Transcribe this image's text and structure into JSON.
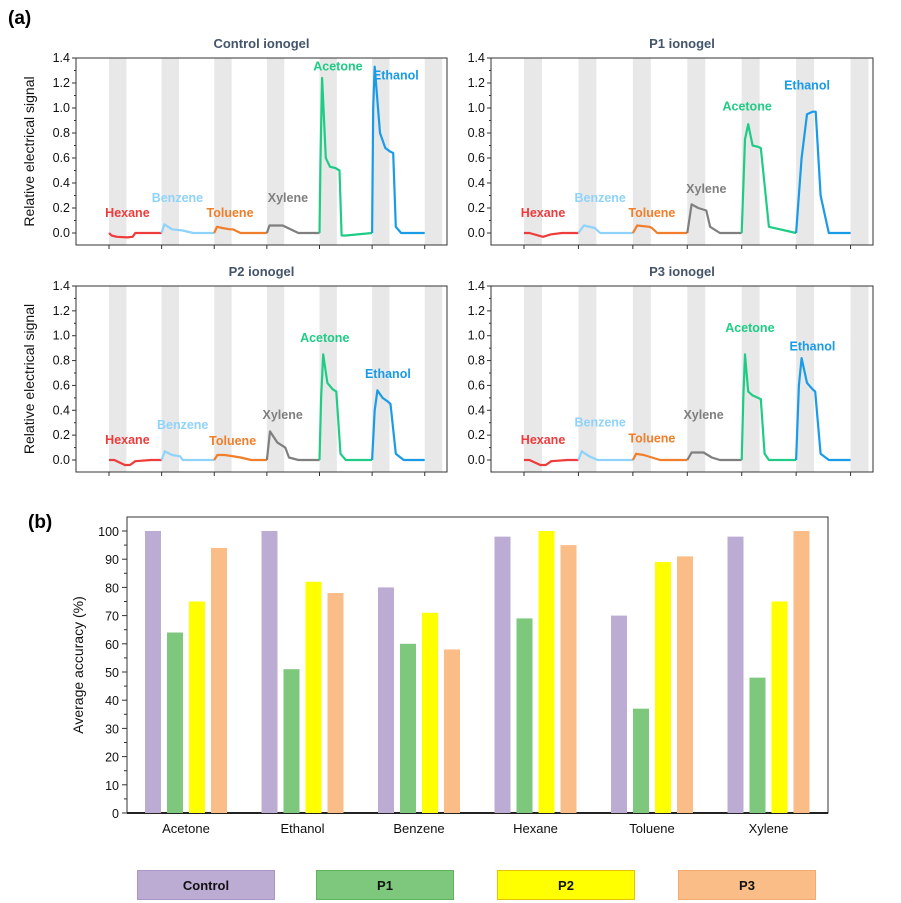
{
  "panel_labels": {
    "a": "(a)",
    "b": "(b)"
  },
  "colors": {
    "Hexane": "#ee3b3b",
    "Benzene": "#8fd3fb",
    "Toluene": "#f07e2a",
    "Xylene": "#7f7f7f",
    "Acetone": "#1fcc85",
    "Ethanol": "#1a9be8",
    "band": "#e8e8e8",
    "Control": "#bcabd3",
    "P1": "#7ec87e",
    "P2": "#ffff00",
    "P3": "#fbbd88"
  },
  "chart_data": [
    {
      "type": "line",
      "title": "Control ionogel",
      "xlabel": "",
      "ylabel": "Relative electrical signal",
      "ylim": [
        -0.1,
        1.4
      ],
      "yticks": [
        "0.0",
        "0.2",
        "0.4",
        "0.6",
        "0.8",
        "1.0",
        "1.2",
        "1.4"
      ],
      "grid": false,
      "series": [
        {
          "name": "Hexane",
          "x": [
            0,
            0.05,
            0.15,
            0.35,
            0.45,
            0.5,
            0.9,
            1.0
          ],
          "y": [
            0,
            -0.02,
            -0.03,
            -0.035,
            -0.03,
            0.0,
            0.0,
            0.0
          ]
        },
        {
          "name": "Benzene",
          "x": [
            1.0,
            1.05,
            1.2,
            1.4,
            1.6,
            2.0
          ],
          "y": [
            0.0,
            0.07,
            0.03,
            0.02,
            0.0,
            0.0
          ]
        },
        {
          "name": "Toluene",
          "x": [
            2.0,
            2.05,
            2.15,
            2.3,
            2.35,
            2.5,
            3.0
          ],
          "y": [
            0.0,
            0.05,
            0.04,
            0.03,
            0.03,
            0.0,
            0.0
          ]
        },
        {
          "name": "Xylene",
          "x": [
            3.0,
            3.05,
            3.3,
            3.45,
            3.6,
            4.0
          ],
          "y": [
            0.0,
            0.06,
            0.06,
            0.03,
            0.0,
            0.0
          ]
        },
        {
          "name": "Acetone",
          "x": [
            4.0,
            4.02,
            4.05,
            4.12,
            4.2,
            4.3,
            4.38,
            4.42,
            4.5,
            5.0
          ],
          "y": [
            0.0,
            0.6,
            1.24,
            0.6,
            0.53,
            0.52,
            0.5,
            -0.02,
            -0.02,
            0.0
          ]
        },
        {
          "name": "Ethanol",
          "x": [
            5.0,
            5.02,
            5.05,
            5.15,
            5.25,
            5.35,
            5.4,
            5.45,
            5.55,
            6.0
          ],
          "y": [
            0.0,
            1.0,
            1.33,
            0.8,
            0.68,
            0.65,
            0.64,
            0.05,
            0.0,
            0.0
          ]
        }
      ]
    },
    {
      "type": "line",
      "title": "P1 ionogel",
      "ylim": [
        -0.1,
        1.4
      ],
      "yticks": [
        "0.0",
        "0.2",
        "0.4",
        "0.6",
        "0.8",
        "1.0",
        "1.2",
        "1.4"
      ],
      "series": [
        {
          "name": "Hexane",
          "x": [
            0,
            0.1,
            0.35,
            0.5,
            0.7,
            1.0
          ],
          "y": [
            0,
            0.0,
            -0.03,
            -0.01,
            0.0,
            0.0
          ]
        },
        {
          "name": "Benzene",
          "x": [
            1.0,
            1.1,
            1.3,
            1.4,
            1.6,
            2.0
          ],
          "y": [
            0.0,
            0.06,
            0.04,
            0.0,
            0.0,
            0.0
          ]
        },
        {
          "name": "Toluene",
          "x": [
            2.0,
            2.08,
            2.3,
            2.35,
            2.45,
            3.0
          ],
          "y": [
            0.0,
            0.06,
            0.05,
            0.04,
            0.0,
            0.0
          ]
        },
        {
          "name": "Xylene",
          "x": [
            3.0,
            3.08,
            3.2,
            3.35,
            3.42,
            3.6,
            4.0
          ],
          "y": [
            0.0,
            0.23,
            0.2,
            0.18,
            0.05,
            0.0,
            0.0
          ]
        },
        {
          "name": "Acetone",
          "x": [
            4.0,
            4.06,
            4.12,
            4.2,
            4.3,
            4.35,
            4.5,
            5.0
          ],
          "y": [
            0.0,
            0.75,
            0.87,
            0.7,
            0.69,
            0.68,
            0.05,
            0.0
          ]
        },
        {
          "name": "Ethanol",
          "x": [
            5.0,
            5.1,
            5.2,
            5.3,
            5.36,
            5.45,
            5.6,
            6.0
          ],
          "y": [
            0.0,
            0.6,
            0.95,
            0.97,
            0.97,
            0.3,
            0.0,
            0.0
          ]
        }
      ]
    },
    {
      "type": "line",
      "title": "P2 ionogel",
      "ylabel": "Relative electrical signal",
      "ylim": [
        -0.1,
        1.4
      ],
      "yticks": [
        "0.0",
        "0.2",
        "0.4",
        "0.6",
        "0.8",
        "1.0",
        "1.2",
        "1.4"
      ],
      "series": [
        {
          "name": "Hexane",
          "x": [
            0,
            0.1,
            0.3,
            0.4,
            0.5,
            0.8,
            1.0
          ],
          "y": [
            0,
            0.0,
            -0.04,
            -0.04,
            -0.01,
            0.0,
            0.0
          ]
        },
        {
          "name": "Benzene",
          "x": [
            1.0,
            1.06,
            1.2,
            1.35,
            1.4,
            2.0
          ],
          "y": [
            0.0,
            0.07,
            0.04,
            0.03,
            0.0,
            0.0
          ]
        },
        {
          "name": "Toluene",
          "x": [
            2.0,
            2.06,
            2.2,
            2.5,
            2.7,
            3.0
          ],
          "y": [
            0.0,
            0.04,
            0.04,
            0.02,
            0.0,
            0.0
          ]
        },
        {
          "name": "Xylene",
          "x": [
            3.0,
            3.06,
            3.2,
            3.35,
            3.42,
            3.6,
            4.0
          ],
          "y": [
            0.0,
            0.23,
            0.14,
            0.1,
            0.02,
            0.0,
            0.0
          ]
        },
        {
          "name": "Acetone",
          "x": [
            4.0,
            4.03,
            4.07,
            4.15,
            4.25,
            4.32,
            4.4,
            4.5,
            5.0
          ],
          "y": [
            0.0,
            0.5,
            0.85,
            0.62,
            0.57,
            0.55,
            0.05,
            0.0,
            0.0
          ]
        },
        {
          "name": "Ethanol",
          "x": [
            5.0,
            5.05,
            5.1,
            5.2,
            5.3,
            5.35,
            5.45,
            5.6,
            6.0
          ],
          "y": [
            0.0,
            0.4,
            0.56,
            0.5,
            0.47,
            0.45,
            0.05,
            0.0,
            0.0
          ]
        }
      ]
    },
    {
      "type": "line",
      "title": "P3 ionogel",
      "ylim": [
        -0.1,
        1.4
      ],
      "yticks": [
        "0.0",
        "0.2",
        "0.4",
        "0.6",
        "0.8",
        "1.0",
        "1.2",
        "1.4"
      ],
      "series": [
        {
          "name": "Hexane",
          "x": [
            0,
            0.1,
            0.3,
            0.4,
            0.5,
            0.8,
            1.0
          ],
          "y": [
            0,
            0.0,
            -0.04,
            -0.04,
            -0.01,
            0.0,
            0.0
          ]
        },
        {
          "name": "Benzene",
          "x": [
            1.0,
            1.06,
            1.2,
            1.35,
            1.4,
            2.0
          ],
          "y": [
            0.0,
            0.07,
            0.03,
            0.0,
            0.0,
            0.0
          ]
        },
        {
          "name": "Toluene",
          "x": [
            2.0,
            2.06,
            2.2,
            2.35,
            2.5,
            3.0
          ],
          "y": [
            0.0,
            0.05,
            0.04,
            0.02,
            0.0,
            0.0
          ]
        },
        {
          "name": "Xylene",
          "x": [
            3.0,
            3.08,
            3.3,
            3.45,
            3.6,
            4.0
          ],
          "y": [
            0.0,
            0.06,
            0.06,
            0.02,
            0.0,
            0.0
          ]
        },
        {
          "name": "Acetone",
          "x": [
            4.0,
            4.03,
            4.06,
            4.12,
            4.2,
            4.35,
            4.42,
            4.5,
            5.0
          ],
          "y": [
            0.0,
            0.5,
            0.85,
            0.55,
            0.52,
            0.49,
            0.05,
            0.0,
            0.0
          ]
        },
        {
          "name": "Ethanol",
          "x": [
            5.0,
            5.05,
            5.1,
            5.2,
            5.3,
            5.35,
            5.45,
            5.6,
            6.0
          ],
          "y": [
            0.0,
            0.6,
            0.82,
            0.62,
            0.57,
            0.55,
            0.05,
            0.0,
            0.0
          ]
        }
      ]
    },
    {
      "type": "bar",
      "title": "",
      "xlabel": "",
      "ylabel": "Average accuracy (%)",
      "ylim": [
        0,
        105
      ],
      "yticks": [
        "0",
        "10",
        "20",
        "30",
        "40",
        "50",
        "60",
        "70",
        "80",
        "90",
        "100"
      ],
      "categories": [
        "Acetone",
        "Ethanol",
        "Benzene",
        "Hexane",
        "Toluene",
        "Xylene"
      ],
      "series": [
        {
          "name": "Control",
          "values": [
            100,
            100,
            80,
            98,
            70,
            98
          ]
        },
        {
          "name": "P1",
          "values": [
            64,
            51,
            60,
            69,
            37,
            48
          ]
        },
        {
          "name": "P2",
          "values": [
            75,
            82,
            71,
            100,
            89,
            75
          ]
        },
        {
          "name": "P3",
          "values": [
            94,
            78,
            58,
            95,
            91,
            100
          ]
        }
      ],
      "legend": [
        "Control",
        "P1",
        "P2",
        "P3"
      ],
      "legend_position": "bottom"
    }
  ],
  "series_label_positions": [
    {
      "Hexane": [
        0.35,
        0.13
      ],
      "Benzene": [
        1.3,
        0.25
      ],
      "Toluene": [
        2.3,
        0.13
      ],
      "Xylene": [
        3.4,
        0.25
      ],
      "Acetone": [
        4.35,
        1.3
      ],
      "Ethanol": [
        5.45,
        1.23
      ]
    },
    {
      "Hexane": [
        0.35,
        0.13
      ],
      "Benzene": [
        1.4,
        0.25
      ],
      "Toluene": [
        2.35,
        0.13
      ],
      "Xylene": [
        3.35,
        0.32
      ],
      "Acetone": [
        4.1,
        0.98
      ],
      "Ethanol": [
        5.2,
        1.15
      ]
    },
    {
      "Hexane": [
        0.35,
        0.13
      ],
      "Benzene": [
        1.4,
        0.25
      ],
      "Toluene": [
        2.35,
        0.12
      ],
      "Xylene": [
        3.3,
        0.33
      ],
      "Acetone": [
        4.1,
        0.95
      ],
      "Ethanol": [
        5.3,
        0.66
      ]
    },
    {
      "Hexane": [
        0.35,
        0.13
      ],
      "Benzene": [
        1.4,
        0.27
      ],
      "Toluene": [
        2.35,
        0.14
      ],
      "Xylene": [
        3.3,
        0.33
      ],
      "Acetone": [
        4.15,
        1.03
      ],
      "Ethanol": [
        5.3,
        0.88
      ]
    }
  ]
}
